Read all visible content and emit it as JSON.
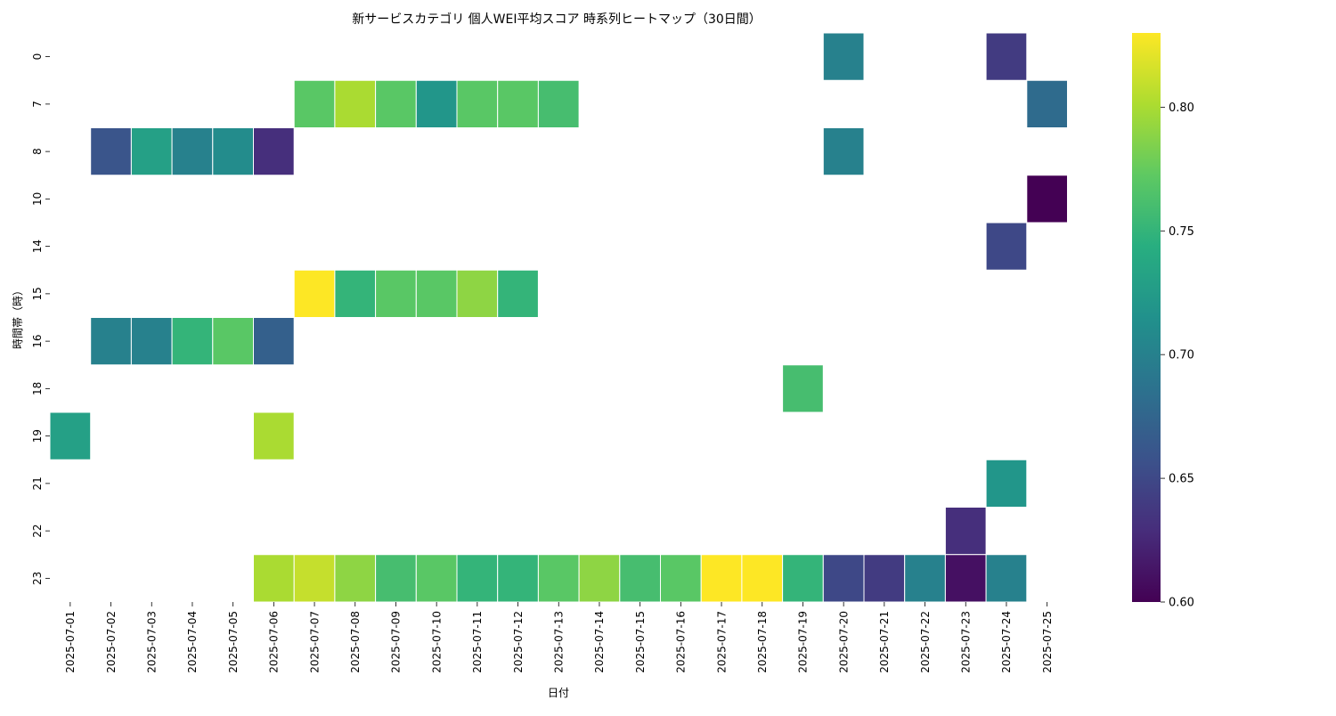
{
  "chart_data": {
    "type": "heatmap",
    "title": "新サービスカテゴリ 個人WEI平均スコア 時系列ヒートマップ（30日間）",
    "xlabel": "日付",
    "ylabel": "時間帯（時）",
    "x_categories": [
      "2025-07-01",
      "2025-07-02",
      "2025-07-03",
      "2025-07-04",
      "2025-07-05",
      "2025-07-06",
      "2025-07-07",
      "2025-07-08",
      "2025-07-09",
      "2025-07-10",
      "2025-07-11",
      "2025-07-12",
      "2025-07-13",
      "2025-07-14",
      "2025-07-15",
      "2025-07-16",
      "2025-07-17",
      "2025-07-18",
      "2025-07-19",
      "2025-07-20",
      "2025-07-21",
      "2025-07-22",
      "2025-07-23",
      "2025-07-24",
      "2025-07-25"
    ],
    "y_categories": [
      "0",
      "7",
      "8",
      "10",
      "14",
      "15",
      "16",
      "18",
      "19",
      "21",
      "22",
      "23"
    ],
    "colormap": "viridis",
    "vmin": 0.6,
    "vmax": 0.83,
    "colorbar_ticks": [
      "0.60",
      "0.65",
      "0.70",
      "0.75",
      "0.80"
    ],
    "cells": [
      {
        "date": "2025-07-20",
        "hour": "0",
        "value": 0.7
      },
      {
        "date": "2025-07-24",
        "hour": "0",
        "value": 0.64
      },
      {
        "date": "2025-07-07",
        "hour": "7",
        "value": 0.77
      },
      {
        "date": "2025-07-08",
        "hour": "7",
        "value": 0.8
      },
      {
        "date": "2025-07-09",
        "hour": "7",
        "value": 0.77
      },
      {
        "date": "2025-07-10",
        "hour": "7",
        "value": 0.72
      },
      {
        "date": "2025-07-11",
        "hour": "7",
        "value": 0.77
      },
      {
        "date": "2025-07-12",
        "hour": "7",
        "value": 0.77
      },
      {
        "date": "2025-07-13",
        "hour": "7",
        "value": 0.76
      },
      {
        "date": "2025-07-25",
        "hour": "7",
        "value": 0.68
      },
      {
        "date": "2025-07-02",
        "hour": "8",
        "value": 0.66
      },
      {
        "date": "2025-07-03",
        "hour": "8",
        "value": 0.73
      },
      {
        "date": "2025-07-04",
        "hour": "8",
        "value": 0.7
      },
      {
        "date": "2025-07-05",
        "hour": "8",
        "value": 0.71
      },
      {
        "date": "2025-07-06",
        "hour": "8",
        "value": 0.63
      },
      {
        "date": "2025-07-20",
        "hour": "8",
        "value": 0.7
      },
      {
        "date": "2025-07-25",
        "hour": "10",
        "value": 0.6
      },
      {
        "date": "2025-07-24",
        "hour": "14",
        "value": 0.65
      },
      {
        "date": "2025-07-07",
        "hour": "15",
        "value": 0.83
      },
      {
        "date": "2025-07-08",
        "hour": "15",
        "value": 0.75
      },
      {
        "date": "2025-07-09",
        "hour": "15",
        "value": 0.77
      },
      {
        "date": "2025-07-10",
        "hour": "15",
        "value": 0.77
      },
      {
        "date": "2025-07-11",
        "hour": "15",
        "value": 0.79
      },
      {
        "date": "2025-07-12",
        "hour": "15",
        "value": 0.75
      },
      {
        "date": "2025-07-02",
        "hour": "16",
        "value": 0.7
      },
      {
        "date": "2025-07-03",
        "hour": "16",
        "value": 0.7
      },
      {
        "date": "2025-07-04",
        "hour": "16",
        "value": 0.75
      },
      {
        "date": "2025-07-05",
        "hour": "16",
        "value": 0.77
      },
      {
        "date": "2025-07-06",
        "hour": "16",
        "value": 0.67
      },
      {
        "date": "2025-07-19",
        "hour": "18",
        "value": 0.76
      },
      {
        "date": "2025-07-01",
        "hour": "19",
        "value": 0.73
      },
      {
        "date": "2025-07-06",
        "hour": "19",
        "value": 0.8
      },
      {
        "date": "2025-07-24",
        "hour": "21",
        "value": 0.72
      },
      {
        "date": "2025-07-23",
        "hour": "22",
        "value": 0.63
      },
      {
        "date": "2025-07-06",
        "hour": "23",
        "value": 0.8
      },
      {
        "date": "2025-07-07",
        "hour": "23",
        "value": 0.81
      },
      {
        "date": "2025-07-08",
        "hour": "23",
        "value": 0.79
      },
      {
        "date": "2025-07-09",
        "hour": "23",
        "value": 0.76
      },
      {
        "date": "2025-07-10",
        "hour": "23",
        "value": 0.77
      },
      {
        "date": "2025-07-11",
        "hour": "23",
        "value": 0.75
      },
      {
        "date": "2025-07-12",
        "hour": "23",
        "value": 0.75
      },
      {
        "date": "2025-07-13",
        "hour": "23",
        "value": 0.77
      },
      {
        "date": "2025-07-14",
        "hour": "23",
        "value": 0.79
      },
      {
        "date": "2025-07-15",
        "hour": "23",
        "value": 0.76
      },
      {
        "date": "2025-07-16",
        "hour": "23",
        "value": 0.77
      },
      {
        "date": "2025-07-17",
        "hour": "23",
        "value": 0.83
      },
      {
        "date": "2025-07-18",
        "hour": "23",
        "value": 0.83
      },
      {
        "date": "2025-07-19",
        "hour": "23",
        "value": 0.75
      },
      {
        "date": "2025-07-20",
        "hour": "23",
        "value": 0.65
      },
      {
        "date": "2025-07-21",
        "hour": "23",
        "value": 0.64
      },
      {
        "date": "2025-07-22",
        "hour": "23",
        "value": 0.7
      },
      {
        "date": "2025-07-23",
        "hour": "23",
        "value": 0.61
      },
      {
        "date": "2025-07-24",
        "hour": "23",
        "value": 0.7
      }
    ]
  }
}
